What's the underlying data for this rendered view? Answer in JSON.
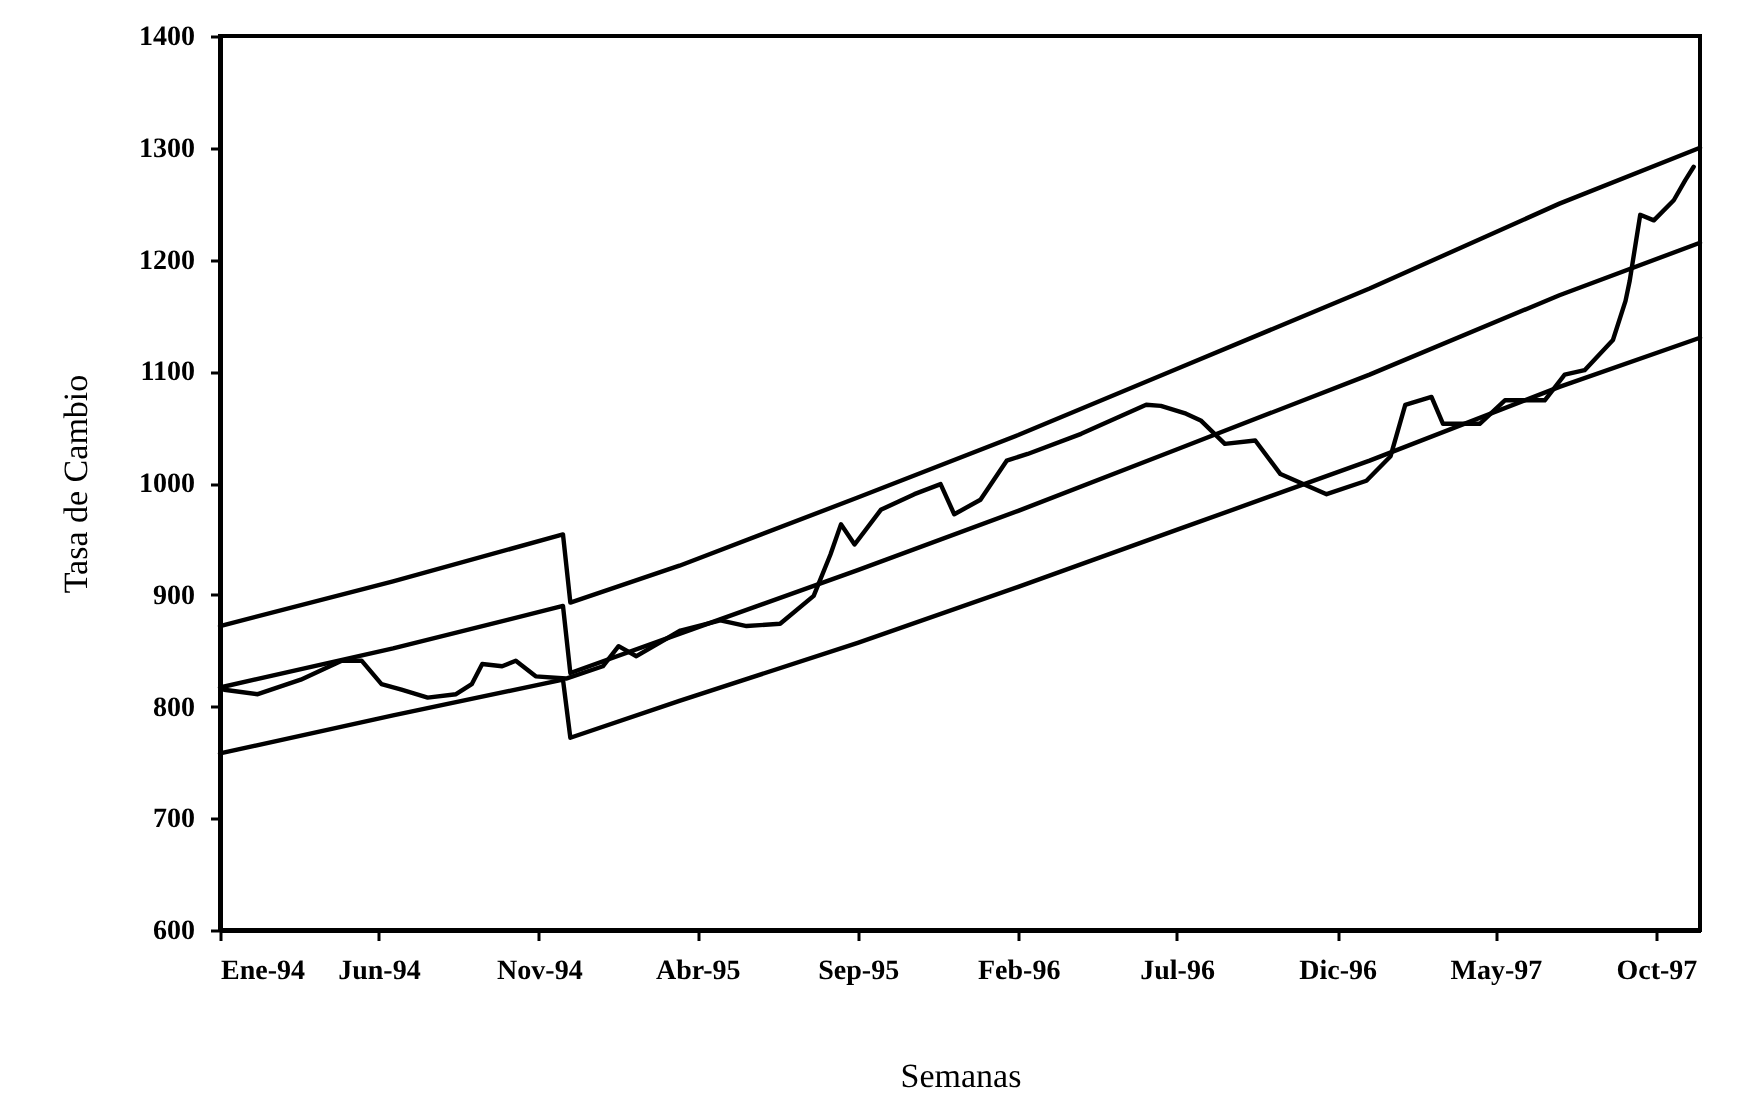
{
  "chart_data": {
    "type": "line",
    "xlabel": "Semanas",
    "ylabel": "Tasa de Cambio",
    "xlim": [
      "1994-01-01",
      "1997-11-12"
    ],
    "ylim": [
      600,
      1400
    ],
    "xticks": [
      {
        "value": "1994-01-01",
        "label": "Ene-94"
      },
      {
        "value": "1994-06-01",
        "label": "Jun-94"
      },
      {
        "value": "1994-11-01",
        "label": "Nov-94"
      },
      {
        "value": "1995-04-01",
        "label": "Abr-95"
      },
      {
        "value": "1995-09-01",
        "label": "Sep-95"
      },
      {
        "value": "1996-02-01",
        "label": "Feb-96"
      },
      {
        "value": "1996-07-01",
        "label": "Jul-96"
      },
      {
        "value": "1996-12-01",
        "label": "Dic-96"
      },
      {
        "value": "1997-05-01",
        "label": "May-97"
      },
      {
        "value": "1997-10-01",
        "label": "Oct-97"
      }
    ],
    "yticks": [
      600,
      700,
      800,
      900,
      1000,
      1100,
      1200,
      1300,
      1400
    ],
    "grid": false,
    "marker": "none",
    "line_style": "solid",
    "series": [
      {
        "color": "#000000",
        "x": [
          "1994-01-01",
          "1994-06-15",
          "1994-11-24",
          "1994-12-01",
          "1995-03-15",
          "1995-09-01",
          "1996-02-01",
          "1996-07-01",
          "1997-01-01",
          "1997-07-01",
          "1997-11-12"
        ],
        "values": [
          872,
          912,
          954,
          893,
          926,
          987,
          1043,
          1102,
          1174,
          1250,
          1300
        ]
      },
      {
        "color": "#000000",
        "x": [
          "1994-01-01",
          "1994-06-15",
          "1994-11-24",
          "1994-12-01",
          "1995-03-15",
          "1995-09-01",
          "1996-02-01",
          "1996-07-01",
          "1997-01-01",
          "1997-07-01",
          "1997-11-12"
        ],
        "values": [
          817,
          852,
          890,
          830,
          865,
          922,
          975,
          1030,
          1097,
          1168,
          1215
        ]
      },
      {
        "color": "#000000",
        "x": [
          "1994-01-01",
          "1994-06-15",
          "1994-11-24",
          "1994-12-01",
          "1995-03-15",
          "1995-09-01",
          "1996-02-01",
          "1996-07-01",
          "1997-01-01",
          "1997-07-01",
          "1997-11-12"
        ],
        "values": [
          758,
          792,
          824,
          772,
          805,
          857,
          907,
          958,
          1020,
          1086,
          1130
        ]
      },
      {
        "color": "#000000",
        "x": [
          "1994-01-05",
          "1994-02-06",
          "1994-03-19",
          "1994-04-27",
          "1994-05-16",
          "1994-06-04",
          "1994-06-23",
          "1994-07-18",
          "1994-08-14",
          "1994-08-29",
          "1994-09-08",
          "1994-09-27",
          "1994-10-10",
          "1994-10-29",
          "1994-11-27",
          "1995-01-01",
          "1995-01-16",
          "1995-02-02",
          "1995-03-16",
          "1995-04-23",
          "1995-05-18",
          "1995-06-19",
          "1995-07-21",
          "1995-08-06",
          "1995-08-16",
          "1995-08-29",
          "1995-09-23",
          "1995-10-25",
          "1995-11-19",
          "1995-12-02",
          "1995-12-27",
          "1996-01-21",
          "1996-02-10",
          "1996-04-01",
          "1996-06-02",
          "1996-06-16",
          "1996-07-10",
          "1996-07-24",
          "1996-08-16",
          "1996-09-14",
          "1996-10-08",
          "1996-11-21",
          "1996-12-29",
          "1997-01-21",
          "1997-02-04",
          "1997-03-01",
          "1997-03-12",
          "1997-04-16",
          "1997-05-10",
          "1997-06-17",
          "1997-07-06",
          "1997-07-25",
          "1997-08-21",
          "1997-09-02",
          "1997-09-06",
          "1997-09-16",
          "1997-09-29",
          "1997-10-18",
          "1997-10-29",
          "1997-11-06"
        ],
        "values": [
          815,
          811,
          824,
          841,
          841,
          820,
          815,
          808,
          811,
          820,
          838,
          836,
          841,
          827,
          825,
          836,
          854,
          845,
          868,
          877,
          872,
          874,
          899,
          936,
          963,
          945,
          976,
          990,
          999,
          972,
          985,
          1020,
          1026,
          1044,
          1070,
          1069,
          1062,
          1056,
          1035,
          1038,
          1008,
          990,
          1002,
          1024,
          1070,
          1077,
          1053,
          1053,
          1074,
          1074,
          1097,
          1101,
          1128,
          1163,
          1181,
          1240,
          1235,
          1253,
          1271,
          1283
        ]
      }
    ]
  }
}
